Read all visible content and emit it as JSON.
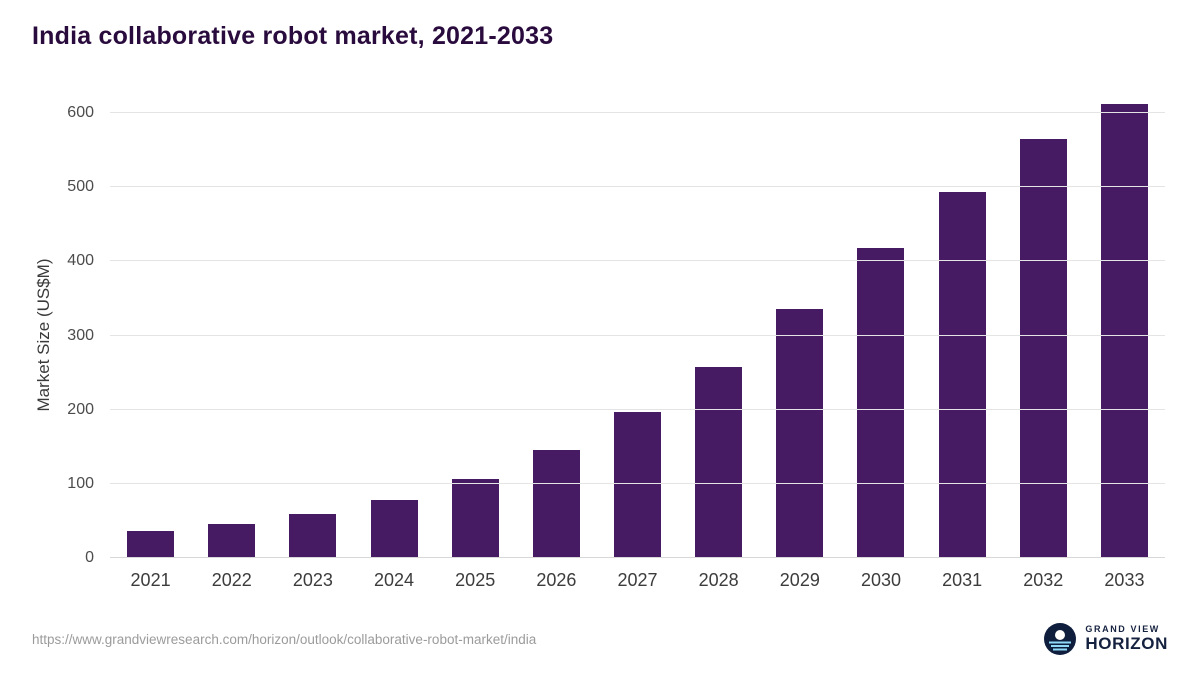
{
  "page": {
    "title": "India collaborative robot market, 2021-2033"
  },
  "footer": {
    "source_url": "https://www.grandviewresearch.com/horizon/outlook/collaborative-robot-market/india",
    "logo_top": "GRAND VIEW",
    "logo_bottom": "HORIZON"
  },
  "colors": {
    "bar": "#471b63",
    "title": "#2a0b3d",
    "grid": "#e4e4e4",
    "axis_text": "#4c4c4c",
    "tick_text": "#3c3c3c",
    "footer_text": "#9b9b9b",
    "logo_navy": "#15223f",
    "logo_cyan": "#8fd9f7"
  },
  "chart_data": {
    "type": "bar",
    "title": "India collaborative robot market, 2021-2033",
    "categories": [
      "2021",
      "2022",
      "2023",
      "2024",
      "2025",
      "2026",
      "2027",
      "2028",
      "2029",
      "2030",
      "2031",
      "2032",
      "2033"
    ],
    "values": [
      37,
      46,
      59,
      78,
      107,
      146,
      197,
      258,
      336,
      418,
      494,
      565,
      612
    ],
    "xlabel": "",
    "ylabel": "Market Size (US$M)",
    "ylim": [
      0,
      600
    ],
    "yticks": [
      0,
      100,
      200,
      300,
      400,
      500,
      600
    ],
    "grid": "horizontal",
    "legend": "none"
  }
}
